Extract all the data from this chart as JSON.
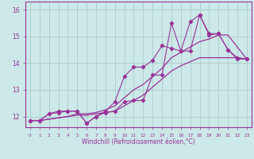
{
  "xlabel": "Windchill (Refroidissement éolien,°C)",
  "bg_color": "#cce8e8",
  "line_color": "#993399",
  "grid_color": "#aacccc",
  "xlim": [
    -0.5,
    23.5
  ],
  "ylim": [
    11.6,
    16.3
  ],
  "xticks": [
    0,
    1,
    2,
    3,
    4,
    5,
    6,
    7,
    8,
    9,
    10,
    11,
    12,
    13,
    14,
    15,
    16,
    17,
    18,
    19,
    20,
    21,
    22,
    23
  ],
  "yticks": [
    12,
    13,
    14,
    15,
    16
  ],
  "line1_x": [
    0,
    1,
    2,
    3,
    4,
    5,
    6,
    7,
    8,
    9,
    10,
    11,
    12,
    13,
    14,
    15,
    16,
    17,
    18,
    19,
    20,
    21,
    22,
    23
  ],
  "line1_y": [
    11.85,
    11.85,
    12.1,
    12.15,
    12.2,
    12.2,
    11.75,
    12.0,
    12.15,
    12.2,
    12.55,
    12.6,
    12.6,
    13.55,
    13.55,
    15.5,
    14.45,
    14.45,
    15.8,
    15.1,
    15.1,
    14.5,
    14.2,
    14.15
  ],
  "line2_x": [
    0,
    1,
    2,
    3,
    4,
    5,
    6,
    7,
    8,
    9,
    10,
    11,
    12,
    13,
    14,
    15,
    16,
    17,
    18,
    19,
    20,
    21,
    22,
    23
  ],
  "line2_y": [
    11.85,
    11.85,
    12.1,
    12.2,
    12.2,
    12.2,
    11.75,
    12.0,
    12.2,
    12.55,
    13.5,
    13.85,
    13.85,
    14.1,
    14.65,
    14.55,
    14.45,
    15.55,
    15.8,
    15.05,
    15.1,
    14.5,
    14.15,
    14.15
  ],
  "smooth1_x": [
    0,
    1,
    2,
    3,
    4,
    5,
    6,
    7,
    8,
    9,
    10,
    11,
    12,
    13,
    14,
    15,
    16,
    17,
    18,
    19,
    20,
    21,
    22,
    23
  ],
  "smooth1_y": [
    11.85,
    11.85,
    11.9,
    11.95,
    12.0,
    12.05,
    12.05,
    12.1,
    12.15,
    12.2,
    12.4,
    12.6,
    12.8,
    13.1,
    13.4,
    13.7,
    13.9,
    14.05,
    14.2,
    14.2,
    14.2,
    14.2,
    14.2,
    14.15
  ],
  "smooth2_x": [
    0,
    1,
    2,
    3,
    4,
    5,
    6,
    7,
    8,
    9,
    10,
    11,
    12,
    13,
    14,
    15,
    16,
    17,
    18,
    19,
    20,
    21,
    22,
    23
  ],
  "smooth2_y": [
    11.85,
    11.85,
    11.9,
    11.95,
    12.0,
    12.1,
    12.1,
    12.15,
    12.25,
    12.4,
    12.7,
    13.0,
    13.2,
    13.5,
    13.8,
    14.2,
    14.4,
    14.6,
    14.8,
    14.9,
    15.05,
    15.05,
    14.6,
    14.15
  ]
}
